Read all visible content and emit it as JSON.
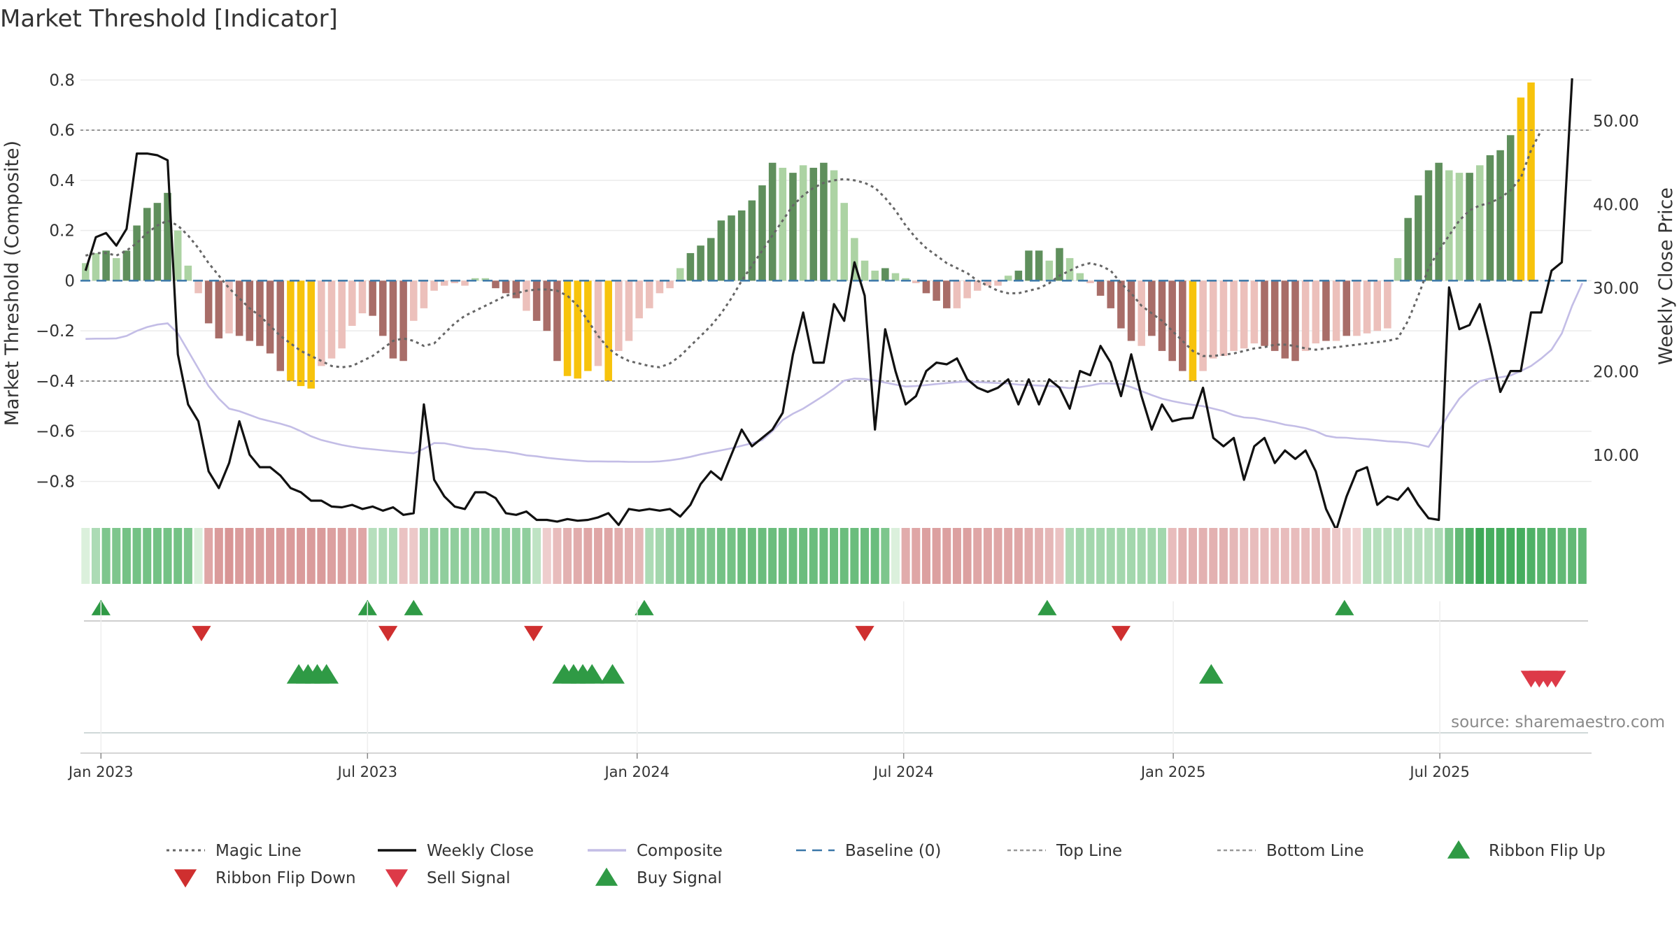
{
  "title": "Market Threshold [Indicator]",
  "source": "source: sharemaestro.com",
  "colors": {
    "bar_dark_green": "#5f8f5c",
    "bar_light_green": "#acd3a3",
    "bar_dark_red": "#a86d68",
    "bar_light_red": "#ecc0bb",
    "bar_yellow": "#f7c30c",
    "weekly_close": "#111111",
    "composite": "#c3bde6",
    "magic_line": "#666666",
    "baseline": "#3a77a8",
    "flip_up": "#2f9a45",
    "flip_down": "#cf2f2f",
    "sell": "#dd3a48",
    "buy": "#2f9a45"
  },
  "chart_data": {
    "type": "bar+line",
    "title": "Market Threshold [Indicator]",
    "ylabel_left": "Market Threshold (Composite)",
    "ylabel_right": "Weekly Close Price",
    "ylim_left": [
      -0.86,
      0.84
    ],
    "ylim_right": [
      5,
      56
    ],
    "yticks_left": [
      {
        "v": 0.8,
        "label": "0.8"
      },
      {
        "v": 0.6,
        "label": "0.6"
      },
      {
        "v": 0.4,
        "label": "0.4"
      },
      {
        "v": 0.2,
        "label": "0.2"
      },
      {
        "v": 0,
        "label": "0"
      },
      {
        "v": -0.2,
        "label": "−0.2"
      },
      {
        "v": -0.4,
        "label": "−0.4"
      },
      {
        "v": -0.6,
        "label": "−0.6"
      },
      {
        "v": -0.8,
        "label": "−0.8"
      }
    ],
    "yticks_right": [
      {
        "v": 50,
        "label": "50.00"
      },
      {
        "v": 40,
        "label": "40.00"
      },
      {
        "v": 30,
        "label": "30.00"
      },
      {
        "v": 20,
        "label": "20.00"
      },
      {
        "v": 10,
        "label": "10.00"
      }
    ],
    "xlim_weeks": [
      -2,
      145.4
    ],
    "xticks": [
      {
        "w": 0,
        "label": "Jan 2023"
      },
      {
        "w": 26,
        "label": "Jul 2023"
      },
      {
        "w": 52.3,
        "label": "Jan 2024"
      },
      {
        "w": 78.3,
        "label": "Jul 2024"
      },
      {
        "w": 104.6,
        "label": "Jan 2025"
      },
      {
        "w": 130.6,
        "label": "Jul 2025"
      }
    ],
    "top_line": 0.6,
    "bottom_line": -0.4,
    "baseline": 0,
    "week_start": -1.5,
    "composite_bars": [
      0.07,
      0.11,
      0.12,
      0.09,
      0.12,
      0.22,
      0.29,
      0.31,
      0.35,
      0.2,
      0.06,
      -0.05,
      -0.17,
      -0.23,
      -0.21,
      -0.22,
      -0.24,
      -0.26,
      -0.29,
      -0.36,
      -0.4,
      -0.42,
      -0.43,
      -0.34,
      -0.31,
      -0.27,
      -0.18,
      -0.13,
      -0.14,
      -0.22,
      -0.31,
      -0.32,
      -0.16,
      -0.11,
      -0.04,
      -0.02,
      -0.01,
      -0.02,
      0.01,
      0.01,
      -0.03,
      -0.05,
      -0.07,
      -0.12,
      -0.16,
      -0.2,
      -0.32,
      -0.38,
      -0.39,
      -0.36,
      -0.34,
      -0.4,
      -0.28,
      -0.24,
      -0.15,
      -0.11,
      -0.05,
      -0.03,
      0.05,
      0.11,
      0.14,
      0.17,
      0.24,
      0.26,
      0.28,
      0.32,
      0.38,
      0.47,
      0.45,
      0.43,
      0.46,
      0.45,
      0.47,
      0.44,
      0.31,
      0.17,
      0.08,
      0.04,
      0.05,
      0.03,
      0.01,
      -0.01,
      -0.05,
      -0.08,
      -0.11,
      -0.11,
      -0.07,
      -0.04,
      -0.02,
      -0.02,
      0.02,
      0.04,
      0.12,
      0.12,
      0.08,
      0.13,
      0.09,
      0.03,
      -0.01,
      -0.06,
      -0.11,
      -0.19,
      -0.24,
      -0.26,
      -0.22,
      -0.28,
      -0.32,
      -0.36,
      -0.4,
      -0.36,
      -0.31,
      -0.3,
      -0.28,
      -0.27,
      -0.25,
      -0.26,
      -0.28,
      -0.31,
      -0.32,
      -0.28,
      -0.25,
      -0.24,
      -0.24,
      -0.22,
      -0.22,
      -0.21,
      -0.2,
      -0.19,
      0.09,
      0.25,
      0.34,
      0.44,
      0.47,
      0.44,
      0.43,
      0.43,
      0.46,
      0.5,
      0.52,
      0.58,
      0.73,
      0.79
    ],
    "bar_colors": [
      "lg",
      "lg",
      "dg",
      "lg",
      "dg",
      "dg",
      "dg",
      "dg",
      "dg",
      "lg",
      "lg",
      "lr",
      "dr",
      "dr",
      "lr",
      "dr",
      "dr",
      "dr",
      "dr",
      "dr",
      "y",
      "y",
      "y",
      "lr",
      "lr",
      "lr",
      "lr",
      "lr",
      "dr",
      "dr",
      "dr",
      "dr",
      "lr",
      "lr",
      "lr",
      "lr",
      "lr",
      "lr",
      "lg",
      "lg",
      "dr",
      "dr",
      "dr",
      "lr",
      "dr",
      "dr",
      "dr",
      "y",
      "y",
      "y",
      "lr",
      "y",
      "lr",
      "lr",
      "lr",
      "lr",
      "lr",
      "lr",
      "lg",
      "dg",
      "dg",
      "dg",
      "dg",
      "dg",
      "dg",
      "dg",
      "dg",
      "dg",
      "lg",
      "dg",
      "lg",
      "dg",
      "dg",
      "lg",
      "lg",
      "lg",
      "lg",
      "lg",
      "dg",
      "lg",
      "lg",
      "lr",
      "dr",
      "dr",
      "dr",
      "lr",
      "lr",
      "lr",
      "lr",
      "lr",
      "lg",
      "dg",
      "dg",
      "dg",
      "lg",
      "dg",
      "lg",
      "lg",
      "lr",
      "dr",
      "dr",
      "dr",
      "dr",
      "lr",
      "dr",
      "dr",
      "dr",
      "dr",
      "y",
      "lr",
      "lr",
      "lr",
      "lr",
      "lr",
      "lr",
      "dr",
      "dr",
      "dr",
      "dr",
      "lr",
      "lr",
      "dr",
      "lr",
      "dr",
      "lr",
      "lr",
      "lr",
      "lr",
      "lg",
      "dg",
      "dg",
      "dg",
      "dg",
      "lg",
      "lg",
      "dg",
      "lg",
      "dg",
      "dg",
      "dg",
      "y",
      "y"
    ],
    "weekly_close": [
      32,
      36,
      36.5,
      35,
      37,
      46,
      46,
      45.8,
      45.2,
      22,
      16,
      14,
      8,
      6,
      9,
      14,
      10,
      8.5,
      8.5,
      7.5,
      6,
      5.5,
      4.5,
      4.5,
      3.8,
      3.7,
      4,
      3.5,
      3.8,
      3.3,
      3.7,
      2.8,
      3,
      16,
      7,
      5,
      3.8,
      3.5,
      5.5,
      5.5,
      4.8,
      3,
      2.8,
      3.2,
      2.2,
      2.2,
      2,
      2.3,
      2.1,
      2.2,
      2.5,
      3,
      1.6,
      3.5,
      3.3,
      3.5,
      3.3,
      3.5,
      2.6,
      4,
      6.5,
      8,
      7,
      10,
      13,
      11,
      12,
      13,
      15,
      22,
      27,
      21,
      21,
      28,
      26,
      33,
      29,
      13,
      25,
      20,
      16,
      17,
      20,
      21,
      20.8,
      21.5,
      19,
      18,
      17.5,
      18,
      19,
      16,
      19,
      16,
      19,
      18,
      15.5,
      20,
      19.5,
      23,
      21,
      17,
      22,
      17,
      13,
      16,
      14,
      14.3,
      14.4,
      18,
      12,
      11,
      12,
      7,
      11,
      12,
      9,
      10.5,
      9.5,
      10.5,
      8,
      3.5,
      1,
      5,
      8,
      8.5,
      4,
      5,
      4.6,
      6,
      4,
      2.4,
      2.2,
      30,
      25,
      25.5,
      28,
      23,
      17.5,
      20,
      20,
      27,
      27,
      32,
      33,
      55
    ],
    "composite_line": [
      -0.232,
      -0.231,
      -0.231,
      -0.23,
      -0.22,
      -0.2,
      -0.185,
      -0.175,
      -0.17,
      -0.21,
      -0.28,
      -0.35,
      -0.42,
      -0.47,
      -0.51,
      -0.52,
      -0.535,
      -0.55,
      -0.56,
      -0.57,
      -0.582,
      -0.6,
      -0.62,
      -0.635,
      -0.645,
      -0.655,
      -0.662,
      -0.668,
      -0.672,
      -0.676,
      -0.68,
      -0.684,
      -0.688,
      -0.67,
      -0.647,
      -0.648,
      -0.656,
      -0.664,
      -0.67,
      -0.672,
      -0.678,
      -0.682,
      -0.688,
      -0.696,
      -0.7,
      -0.706,
      -0.71,
      -0.714,
      -0.717,
      -0.72,
      -0.72,
      -0.721,
      -0.721,
      -0.722,
      -0.722,
      -0.722,
      -0.72,
      -0.716,
      -0.71,
      -0.702,
      -0.692,
      -0.684,
      -0.676,
      -0.668,
      -0.658,
      -0.648,
      -0.635,
      -0.6,
      -0.555,
      -0.53,
      -0.51,
      -0.484,
      -0.458,
      -0.43,
      -0.398,
      -0.39,
      -0.392,
      -0.398,
      -0.406,
      -0.414,
      -0.422,
      -0.42,
      -0.416,
      -0.412,
      -0.408,
      -0.404,
      -0.402,
      -0.404,
      -0.406,
      -0.408,
      -0.41,
      -0.414,
      -0.416,
      -0.418,
      -0.42,
      -0.424,
      -0.428,
      -0.424,
      -0.418,
      -0.41,
      -0.41,
      -0.412,
      -0.424,
      -0.44,
      -0.456,
      -0.47,
      -0.48,
      -0.488,
      -0.495,
      -0.5,
      -0.51,
      -0.52,
      -0.536,
      -0.545,
      -0.548,
      -0.556,
      -0.564,
      -0.574,
      -0.58,
      -0.588,
      -0.6,
      -0.618,
      -0.625,
      -0.626,
      -0.63,
      -0.632,
      -0.636,
      -0.64,
      -0.642,
      -0.645,
      -0.652,
      -0.662,
      -0.6,
      -0.53,
      -0.47,
      -0.43,
      -0.4,
      -0.39,
      -0.385,
      -0.378,
      -0.36,
      -0.34,
      -0.31,
      -0.275,
      -0.21,
      -0.1,
      -0.01
    ],
    "magic_line": [
      0.1,
      0.11,
      0.11,
      0.1,
      0.12,
      0.15,
      0.19,
      0.22,
      0.24,
      0.22,
      0.18,
      0.13,
      0.07,
      0.02,
      -0.03,
      -0.07,
      -0.11,
      -0.14,
      -0.18,
      -0.22,
      -0.25,
      -0.28,
      -0.3,
      -0.32,
      -0.34,
      -0.345,
      -0.34,
      -0.32,
      -0.3,
      -0.27,
      -0.24,
      -0.23,
      -0.24,
      -0.26,
      -0.25,
      -0.21,
      -0.17,
      -0.14,
      -0.12,
      -0.1,
      -0.08,
      -0.06,
      -0.05,
      -0.04,
      -0.035,
      -0.035,
      -0.04,
      -0.06,
      -0.1,
      -0.16,
      -0.22,
      -0.27,
      -0.3,
      -0.32,
      -0.33,
      -0.34,
      -0.345,
      -0.33,
      -0.3,
      -0.26,
      -0.22,
      -0.18,
      -0.13,
      -0.07,
      0,
      0.06,
      0.12,
      0.18,
      0.24,
      0.3,
      0.34,
      0.37,
      0.39,
      0.4,
      0.405,
      0.4,
      0.39,
      0.37,
      0.33,
      0.28,
      0.22,
      0.17,
      0.13,
      0.1,
      0.07,
      0.05,
      0.03,
      0,
      -0.02,
      -0.04,
      -0.05,
      -0.05,
      -0.04,
      -0.03,
      -0.01,
      0.02,
      0.04,
      0.06,
      0.07,
      0.06,
      0.04,
      -0.01,
      -0.05,
      -0.1,
      -0.13,
      -0.16,
      -0.2,
      -0.24,
      -0.28,
      -0.3,
      -0.3,
      -0.295,
      -0.29,
      -0.28,
      -0.27,
      -0.265,
      -0.255,
      -0.255,
      -0.26,
      -0.27,
      -0.275,
      -0.27,
      -0.265,
      -0.26,
      -0.255,
      -0.25,
      -0.245,
      -0.24,
      -0.23,
      -0.16,
      -0.06,
      0.05,
      0.12,
      0.18,
      0.24,
      0.28,
      0.3,
      0.31,
      0.33,
      0.36,
      0.41,
      0.52,
      0.6
    ],
    "ribbon_values": [
      0.05,
      0.3,
      0.55,
      0.55,
      0.6,
      0.6,
      0.6,
      0.6,
      0.6,
      0.6,
      0.55,
      0.05,
      -0.5,
      -0.6,
      -0.65,
      -0.6,
      -0.6,
      -0.6,
      -0.6,
      -0.6,
      -0.6,
      -0.6,
      -0.6,
      -0.6,
      -0.55,
      -0.55,
      -0.5,
      -0.5,
      0.25,
      0.3,
      0.3,
      -0.25,
      -0.2,
      0.4,
      0.45,
      0.45,
      0.45,
      0.45,
      0.45,
      0.45,
      0.45,
      0.45,
      0.45,
      0.45,
      0.2,
      -0.15,
      -0.3,
      -0.4,
      -0.45,
      -0.5,
      -0.5,
      -0.5,
      -0.45,
      -0.4,
      -0.35,
      0.3,
      0.35,
      0.45,
      0.5,
      0.55,
      0.55,
      0.55,
      0.6,
      0.6,
      0.65,
      0.65,
      0.65,
      0.65,
      0.65,
      0.65,
      0.65,
      0.65,
      0.65,
      0.65,
      0.65,
      0.65,
      0.65,
      0.65,
      0.55,
      0.05,
      -0.45,
      -0.5,
      -0.55,
      -0.55,
      -0.55,
      -0.55,
      -0.55,
      -0.5,
      -0.5,
      -0.5,
      -0.5,
      -0.5,
      -0.45,
      -0.4,
      -0.35,
      -0.25,
      0.3,
      0.35,
      0.35,
      0.35,
      0.35,
      0.35,
      0.35,
      0.35,
      0.35,
      0.35,
      -0.3,
      -0.4,
      -0.4,
      -0.4,
      -0.4,
      -0.4,
      -0.35,
      -0.3,
      -0.3,
      -0.3,
      -0.3,
      -0.3,
      -0.3,
      -0.3,
      -0.3,
      -0.3,
      -0.2,
      -0.15,
      -0.1,
      0.25,
      0.25,
      0.25,
      0.25,
      0.25,
      0.25,
      0.25,
      0.3,
      0.55,
      0.7,
      0.8,
      0.9,
      0.85,
      0.85,
      0.85,
      0.85,
      0.8,
      0.75,
      0.75,
      0.7,
      0.7,
      0.7
    ],
    "ribbon_flip_up": [
      0,
      26,
      30.5,
      53,
      92.3,
      121.3
    ],
    "ribbon_flip_down": [
      9.8,
      28,
      42.2,
      74.5,
      99.5
    ],
    "buy_signals": [
      19.3,
      20.2,
      21.1,
      22,
      45.2,
      46.1,
      47,
      47.9,
      49.9,
      108.3
    ],
    "sell_signals": [
      139.5,
      140.3,
      141.1,
      141.9
    ]
  },
  "legend": [
    {
      "label": "Magic Line",
      "marker": "dotted-line",
      "color": "#666666"
    },
    {
      "label": "Weekly Close",
      "marker": "solid-line",
      "color": "#111111"
    },
    {
      "label": "Composite",
      "marker": "solid-line",
      "color": "#c3bde6"
    },
    {
      "label": "Baseline (0)",
      "marker": "dashed-line",
      "color": "#3a77a8"
    },
    {
      "label": "Top Line",
      "marker": "dashed-line",
      "color": "#999999"
    },
    {
      "label": "Bottom Line",
      "marker": "dashed-line",
      "color": "#999999"
    },
    {
      "label": "Ribbon Flip Up",
      "marker": "triangle-up",
      "color": "#2f9a45"
    },
    {
      "label": "Ribbon Flip Down",
      "marker": "triangle-down",
      "color": "#cf2f2f"
    },
    {
      "label": "Sell Signal",
      "marker": "triangle-down",
      "color": "#dd3a48"
    },
    {
      "label": "Buy Signal",
      "marker": "triangle-up",
      "color": "#2f9a45"
    }
  ]
}
